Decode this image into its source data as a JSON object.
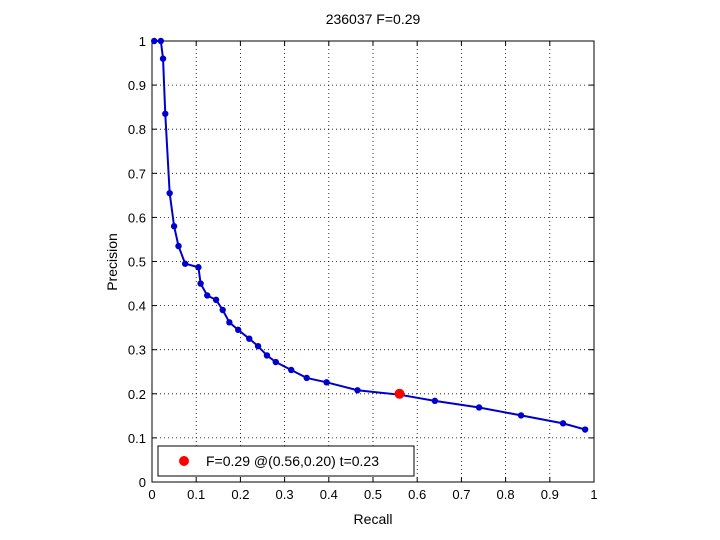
{
  "chart_data": {
    "type": "line",
    "title": "236037 F=0.29",
    "xlabel": "Recall",
    "ylabel": "Precision",
    "xlim": [
      0,
      1
    ],
    "ylim": [
      0,
      1
    ],
    "xticks": [
      "0",
      "0.1",
      "0.2",
      "0.3",
      "0.4",
      "0.5",
      "0.6",
      "0.7",
      "0.8",
      "0.9",
      "1"
    ],
    "yticks": [
      "0",
      "0.1",
      "0.2",
      "0.3",
      "0.4",
      "0.5",
      "0.6",
      "0.7",
      "0.8",
      "0.9",
      "1"
    ],
    "grid": true,
    "legend_position": "bottom-left",
    "series": [
      {
        "color": "#0000cc",
        "x": [
          0.005,
          0.02,
          0.025,
          0.03,
          0.04,
          0.05,
          0.06,
          0.075,
          0.105,
          0.11,
          0.125,
          0.145,
          0.16,
          0.175,
          0.195,
          0.22,
          0.24,
          0.26,
          0.28,
          0.315,
          0.35,
          0.395,
          0.465,
          0.56,
          0.64,
          0.74,
          0.835,
          0.93,
          0.98
        ],
        "y": [
          1.0,
          1.0,
          0.96,
          0.835,
          0.655,
          0.58,
          0.535,
          0.495,
          0.487,
          0.45,
          0.423,
          0.413,
          0.39,
          0.362,
          0.345,
          0.325,
          0.308,
          0.287,
          0.272,
          0.254,
          0.236,
          0.226,
          0.208,
          0.198,
          0.184,
          0.169,
          0.151,
          0.133,
          0.119
        ]
      }
    ],
    "highlight": {
      "x": 0.56,
      "y": 0.2,
      "color": "#ff0000"
    },
    "legend": {
      "text": "F=0.29 @(0.56,0.20) t=0.23"
    }
  }
}
